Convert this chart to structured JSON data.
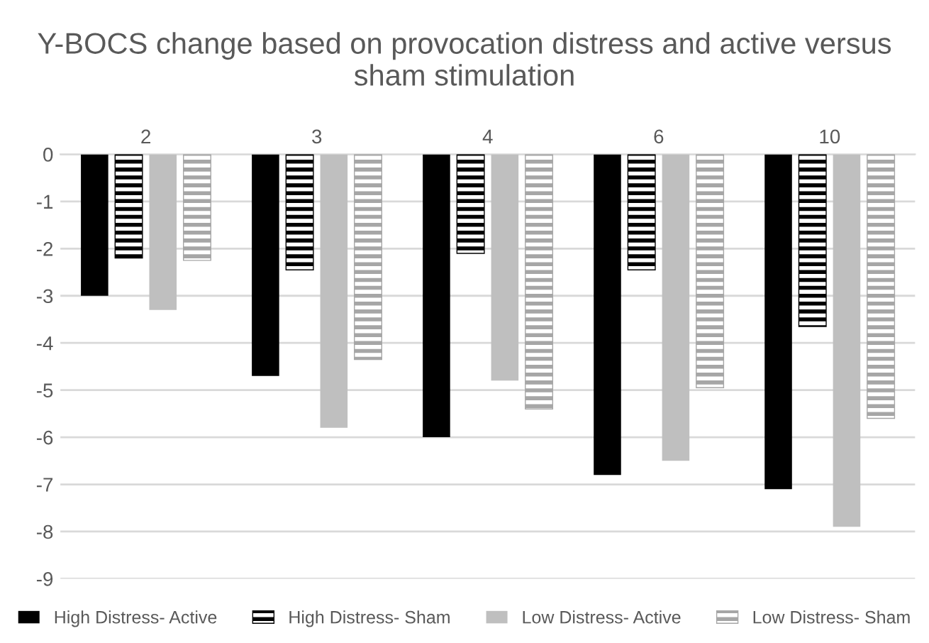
{
  "chart_data": {
    "type": "bar",
    "title": "Y-BOCS change based on provocation distress and active versus sham stimulation",
    "categories": [
      "2",
      "3",
      "4",
      "6",
      "10"
    ],
    "series": [
      {
        "name": "High Distress- Active",
        "color": "#000000",
        "values": [
          -3.0,
          -4.7,
          -6.0,
          -6.8,
          -7.1
        ]
      },
      {
        "name": "High Distress- Sham",
        "color": "#000000",
        "values": [
          -2.2,
          -2.45,
          -2.1,
          -2.45,
          -3.65
        ]
      },
      {
        "name": "Low Distress- Active",
        "color": "#bfbfbf",
        "values": [
          -3.3,
          -5.8,
          -4.8,
          -6.5,
          -7.9
        ]
      },
      {
        "name": "Low Distress- Sham",
        "color": "#a6a6a6",
        "values": [
          -2.25,
          -4.35,
          -5.4,
          -4.95,
          -5.6
        ]
      }
    ],
    "ylim": [
      -9,
      0
    ],
    "yticks": [
      0,
      -1,
      -2,
      -3,
      -4,
      -5,
      -6,
      -7,
      -8,
      -9
    ],
    "grid": "y",
    "legend": "bottom"
  }
}
